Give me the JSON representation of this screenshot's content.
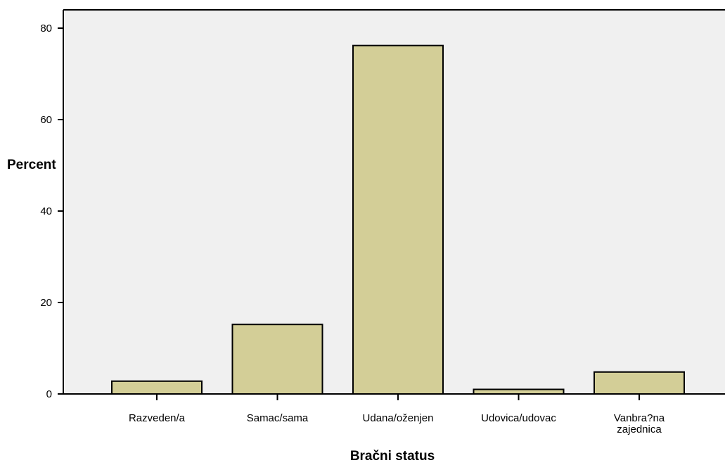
{
  "chart_data": {
    "type": "bar",
    "categories": [
      [
        "Razveden/a"
      ],
      [
        "Samac/sama"
      ],
      [
        "Udana/oženjen"
      ],
      [
        "Udovica/udovac"
      ],
      [
        "Vanbra?na",
        "zajednica"
      ]
    ],
    "values": [
      2.8,
      15.2,
      76.2,
      1.0,
      4.8
    ],
    "xlabel": "Bračni status",
    "ylabel": "Percent",
    "ylim": [
      0,
      80
    ],
    "yticks": [
      0,
      20,
      40,
      60,
      80
    ],
    "grid": false,
    "legend": "none"
  },
  "colors": {
    "bar_fill": "#d3ce97",
    "plot_background": "#f0f0f0",
    "stroke": "#000000"
  }
}
